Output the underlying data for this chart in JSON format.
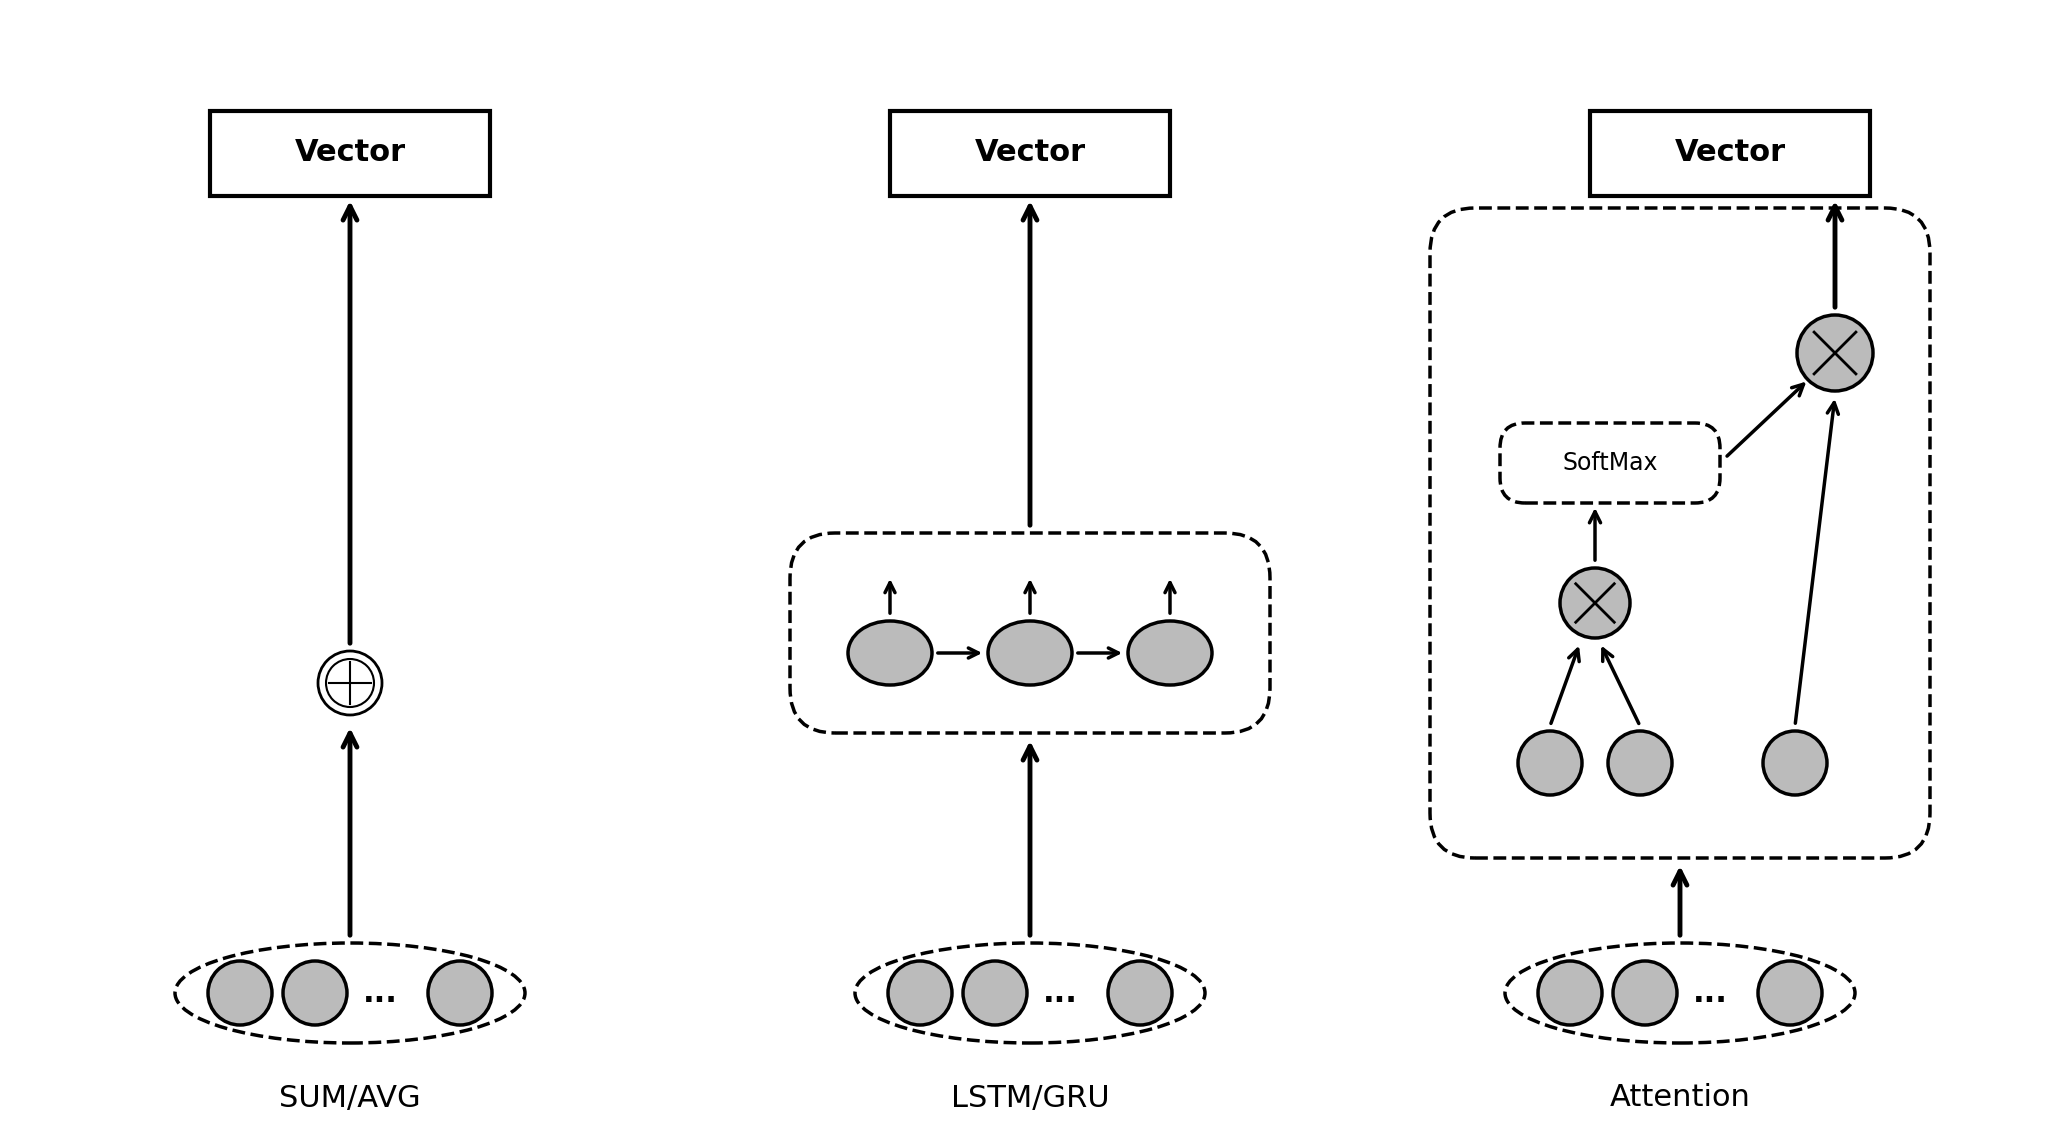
{
  "bg_color": "#ffffff",
  "node_color": "#bbbbbb",
  "node_edge_color": "#000000",
  "arrow_color": "#000000",
  "box_color": "#ffffff",
  "dashed_color": "#000000",
  "text_color": "#000000",
  "sections": [
    "SUM/AVG",
    "LSTM/GRU",
    "Attention"
  ],
  "vector_label": "Vector",
  "softmax_label": "SoftMax"
}
